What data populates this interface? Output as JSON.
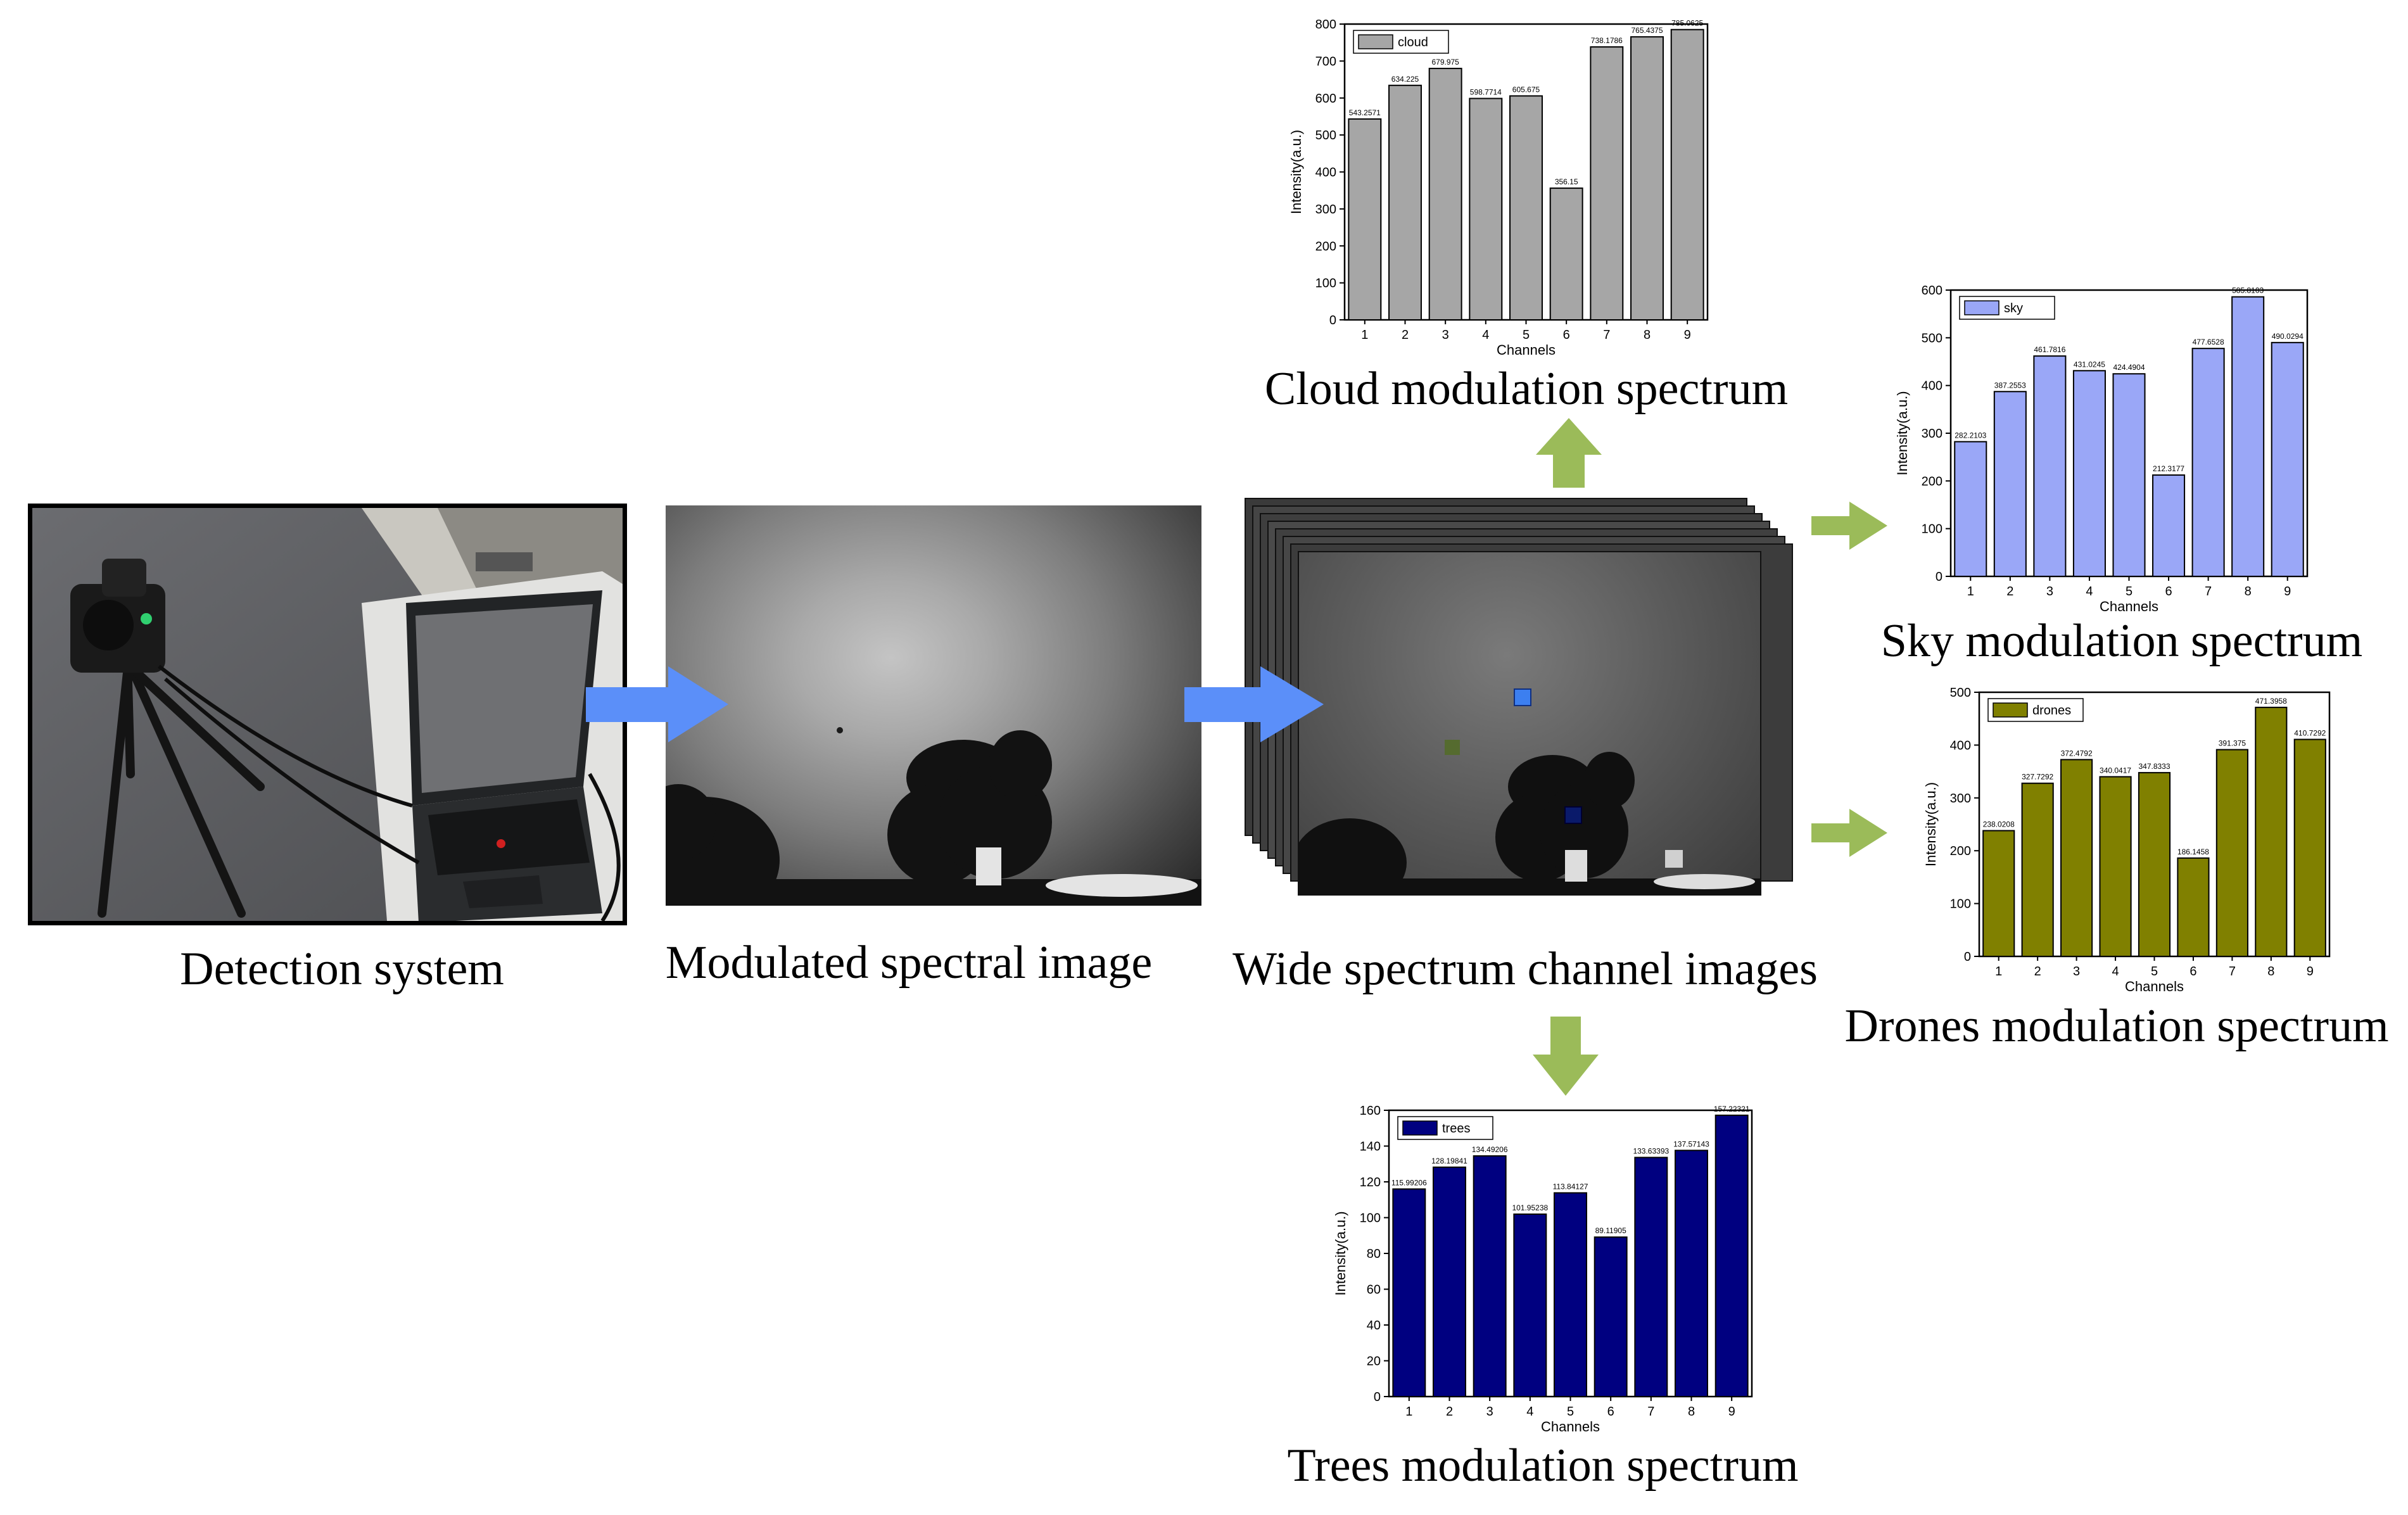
{
  "captions": {
    "detection": "Detection system",
    "modulated": "Modulated spectral image",
    "wide": "Wide spectrum channel images",
    "cloud": "Cloud modulation spectrum",
    "sky": "Sky modulation spectrum",
    "drones": "Drones modulation spectrum",
    "trees": "Trees modulation spectrum"
  },
  "colors": {
    "flow_arrow": "#5b8ff9",
    "branch_arrow": "#9bbb59",
    "marker_sky": "#3c7ff0",
    "marker_drone": "#556b2f",
    "marker_tree": "#0a1a6a",
    "marker_cloud": "#d0d0d0"
  },
  "chart_data": [
    {
      "id": "cloud",
      "type": "bar",
      "categories": [
        "1",
        "2",
        "3",
        "4",
        "5",
        "6",
        "7",
        "8",
        "9"
      ],
      "series": [
        {
          "name": "cloud",
          "values": [
            543.2571,
            634.225,
            679.975,
            598.7714,
            605.675,
            356.15,
            738.1786,
            765.4375,
            785.0625
          ]
        }
      ],
      "value_labels": [
        "543.2571",
        "634.225",
        "679.975",
        "598.7714",
        "605.675",
        "356.15",
        "738.1786",
        "765.4375",
        "785.0625"
      ],
      "xlabel": "Channels",
      "ylabel": "Intensity(a.u.)",
      "ylim": [
        0,
        800
      ],
      "yticks": [
        "0",
        "100",
        "200",
        "300",
        "400",
        "500",
        "600",
        "700",
        "800"
      ],
      "color": "#a6a6a6",
      "legend": "top-left",
      "grid": false
    },
    {
      "id": "sky",
      "type": "bar",
      "categories": [
        "1",
        "2",
        "3",
        "4",
        "5",
        "6",
        "7",
        "8",
        "9"
      ],
      "series": [
        {
          "name": "sky",
          "values": [
            282.2103,
            387.2553,
            461.7816,
            431.0245,
            424.4904,
            212.3177,
            477.6528,
            585.8103,
            490.0294
          ]
        }
      ],
      "value_labels": [
        "282.2103",
        "387.2553",
        "461.7816",
        "431.0245",
        "424.4904",
        "212.3177",
        "477.6528",
        "585.8103",
        "490.0294"
      ],
      "xlabel": "Channels",
      "ylabel": "Intensity(a.u.)",
      "ylim": [
        0,
        600
      ],
      "yticks": [
        "0",
        "100",
        "200",
        "300",
        "400",
        "500",
        "600"
      ],
      "color": "#9aa7f7",
      "legend": "top-left",
      "grid": false
    },
    {
      "id": "drones",
      "type": "bar",
      "categories": [
        "1",
        "2",
        "3",
        "4",
        "5",
        "6",
        "7",
        "8",
        "9"
      ],
      "series": [
        {
          "name": "drones",
          "values": [
            238.0208,
            327.7292,
            372.4792,
            340.0417,
            347.8333,
            186.1458,
            391.375,
            471.3958,
            410.7292
          ]
        }
      ],
      "value_labels": [
        "238.0208",
        "327.7292",
        "372.4792",
        "340.0417",
        "347.8333",
        "186.1458",
        "391.375",
        "471.3958",
        "410.7292"
      ],
      "xlabel": "Channels",
      "ylabel": "Intensity(a.u.)",
      "ylim": [
        0,
        500
      ],
      "yticks": [
        "0",
        "100",
        "200",
        "300",
        "400",
        "500"
      ],
      "color": "#808000",
      "legend": "top-left",
      "grid": false
    },
    {
      "id": "trees",
      "type": "bar",
      "categories": [
        "1",
        "2",
        "3",
        "4",
        "5",
        "6",
        "7",
        "8",
        "9"
      ],
      "series": [
        {
          "name": "trees",
          "values": [
            115.99206,
            128.19841,
            134.49206,
            101.95238,
            113.84127,
            89.11905,
            133.63393,
            137.57143,
            157.22321
          ]
        }
      ],
      "value_labels": [
        "115.99206",
        "128.19841",
        "134.49206",
        "101.95238",
        "113.84127",
        "89.11905",
        "133.63393",
        "137.57143",
        "157.22321"
      ],
      "xlabel": "Channels",
      "ylabel": "Intensity(a.u.)",
      "ylim": [
        0,
        160
      ],
      "yticks": [
        "0",
        "20",
        "40",
        "60",
        "80",
        "100",
        "120",
        "140",
        "160"
      ],
      "color": "#000080",
      "legend": "top-left",
      "grid": false
    }
  ]
}
